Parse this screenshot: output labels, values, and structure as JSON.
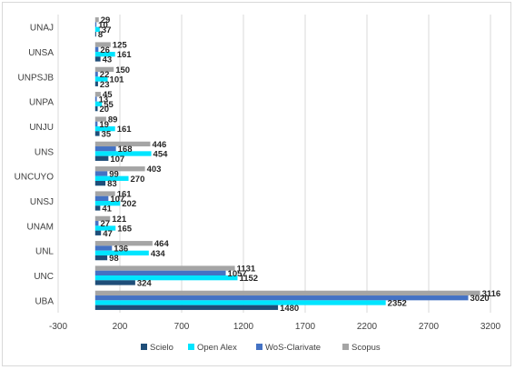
{
  "chart_data": {
    "type": "bar",
    "orientation": "horizontal",
    "categories": [
      "UBA",
      "UNC",
      "UNL",
      "UNAM",
      "UNSJ",
      "UNCUYO",
      "UNS",
      "UNJU",
      "UNPA",
      "UNPSJB",
      "UNSA",
      "UNAJ"
    ],
    "series": [
      {
        "name": "Scielo",
        "color": "#1f4e79",
        "values": [
          1480,
          324,
          98,
          47,
          41,
          83,
          107,
          35,
          20,
          23,
          43,
          8
        ]
      },
      {
        "name": "Open Alex",
        "color": "#00e5ff",
        "values": [
          2352,
          1152,
          434,
          165,
          202,
          270,
          454,
          161,
          55,
          101,
          161,
          37
        ]
      },
      {
        "name": "WoS-Clarivate",
        "color": "#4472c4",
        "values": [
          3020,
          1057,
          136,
          27,
          107,
          99,
          168,
          19,
          13,
          22,
          26,
          10
        ]
      },
      {
        "name": "Scopus",
        "color": "#a5a5a5",
        "values": [
          3116,
          1131,
          464,
          121,
          161,
          403,
          446,
          89,
          45,
          150,
          125,
          29
        ]
      }
    ],
    "xlim": [
      -300,
      3200
    ],
    "xticks": [
      -300,
      200,
      700,
      1200,
      1700,
      2200,
      2700,
      3200
    ],
    "grid": true,
    "legend": "bottom",
    "title": "",
    "xlabel": "",
    "ylabel": ""
  }
}
